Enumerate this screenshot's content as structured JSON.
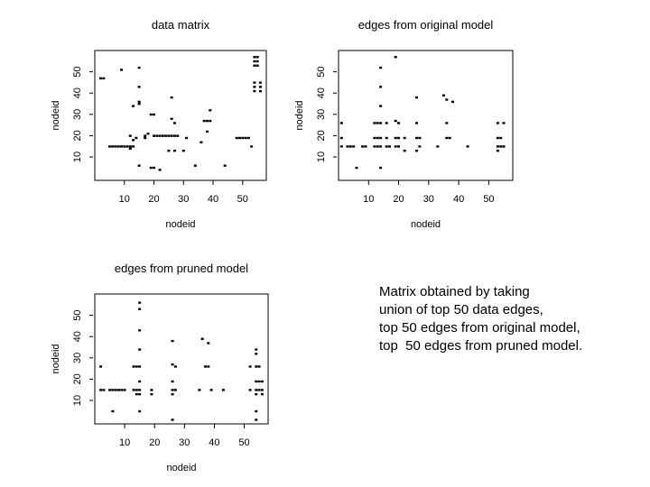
{
  "chart_data": [
    {
      "type": "scatter",
      "title": "data matrix",
      "xlabel": "nodeid",
      "ylabel": "nodeid",
      "xticks": [
        10,
        20,
        30,
        40,
        50
      ],
      "yticks": [
        10,
        20,
        30,
        40,
        50
      ],
      "xlim": [
        0,
        58
      ],
      "ylim": [
        -1,
        60
      ],
      "grid": false,
      "points": [
        [
          2,
          47
        ],
        [
          3,
          47
        ],
        [
          5,
          15
        ],
        [
          6,
          15
        ],
        [
          7,
          15
        ],
        [
          8,
          15
        ],
        [
          9,
          15
        ],
        [
          10,
          15
        ],
        [
          11,
          15
        ],
        [
          12,
          15
        ],
        [
          13,
          15
        ],
        [
          9,
          51
        ],
        [
          15,
          52
        ],
        [
          15,
          43
        ],
        [
          15,
          36
        ],
        [
          15,
          35
        ],
        [
          12,
          20
        ],
        [
          12,
          14
        ],
        [
          13,
          18
        ],
        [
          13,
          34
        ],
        [
          14,
          19
        ],
        [
          15,
          6
        ],
        [
          17,
          19
        ],
        [
          17,
          20
        ],
        [
          18,
          21
        ],
        [
          20,
          20
        ],
        [
          21,
          20
        ],
        [
          22,
          20
        ],
        [
          23,
          20
        ],
        [
          24,
          20
        ],
        [
          25,
          20
        ],
        [
          26,
          20
        ],
        [
          27,
          20
        ],
        [
          28,
          20
        ],
        [
          19,
          30
        ],
        [
          20,
          30
        ],
        [
          19,
          5
        ],
        [
          20,
          5
        ],
        [
          22,
          4
        ],
        [
          26,
          38
        ],
        [
          26,
          28
        ],
        [
          27,
          26
        ],
        [
          25,
          13
        ],
        [
          27,
          13
        ],
        [
          30,
          13
        ],
        [
          31,
          19
        ],
        [
          34,
          6
        ],
        [
          36,
          17
        ],
        [
          37,
          27
        ],
        [
          38,
          27
        ],
        [
          39,
          27
        ],
        [
          39,
          32
        ],
        [
          38,
          22
        ],
        [
          44,
          6
        ],
        [
          48,
          19
        ],
        [
          49,
          19
        ],
        [
          50,
          19
        ],
        [
          51,
          19
        ],
        [
          52,
          19
        ],
        [
          53,
          15
        ],
        [
          54,
          57
        ],
        [
          54,
          55
        ],
        [
          54,
          53
        ],
        [
          55,
          57
        ],
        [
          55,
          55
        ],
        [
          55,
          53
        ],
        [
          54,
          45
        ],
        [
          54,
          43
        ],
        [
          54,
          41
        ],
        [
          56,
          45
        ],
        [
          56,
          43
        ],
        [
          56,
          41
        ]
      ]
    },
    {
      "type": "scatter",
      "title": "edges from original model",
      "xlabel": "nodeid",
      "ylabel": "nodeid",
      "xticks": [
        10,
        20,
        30,
        40,
        50
      ],
      "yticks": [
        10,
        20,
        30,
        40,
        50
      ],
      "xlim": [
        0,
        58
      ],
      "ylim": [
        -1,
        60
      ],
      "grid": false,
      "points": [
        [
          1,
          26
        ],
        [
          1,
          19
        ],
        [
          1,
          15
        ],
        [
          3,
          15
        ],
        [
          4,
          15
        ],
        [
          5,
          15
        ],
        [
          6,
          5
        ],
        [
          8,
          15
        ],
        [
          9,
          15
        ],
        [
          12,
          26
        ],
        [
          12,
          19
        ],
        [
          12,
          15
        ],
        [
          13,
          26
        ],
        [
          13,
          19
        ],
        [
          13,
          15
        ],
        [
          14,
          52
        ],
        [
          14,
          43
        ],
        [
          14,
          34
        ],
        [
          14,
          26
        ],
        [
          14,
          19
        ],
        [
          14,
          15
        ],
        [
          14,
          5
        ],
        [
          16,
          26
        ],
        [
          16,
          19
        ],
        [
          16,
          15
        ],
        [
          17,
          15
        ],
        [
          19,
          57
        ],
        [
          19,
          27
        ],
        [
          19,
          19
        ],
        [
          19,
          15
        ],
        [
          20,
          26
        ],
        [
          20,
          19
        ],
        [
          20,
          15
        ],
        [
          22,
          19
        ],
        [
          22,
          13
        ],
        [
          26,
          38
        ],
        [
          26,
          26
        ],
        [
          26,
          19
        ],
        [
          26,
          13
        ],
        [
          27,
          19
        ],
        [
          27,
          15
        ],
        [
          33,
          15
        ],
        [
          35,
          39
        ],
        [
          36,
          26
        ],
        [
          36,
          19
        ],
        [
          36,
          37
        ],
        [
          37,
          19
        ],
        [
          38,
          36
        ],
        [
          43,
          15
        ],
        [
          53,
          26
        ],
        [
          53,
          19
        ],
        [
          53,
          15
        ],
        [
          53,
          13
        ],
        [
          54,
          19
        ],
        [
          54,
          15
        ],
        [
          55,
          26
        ],
        [
          55,
          15
        ]
      ]
    },
    {
      "type": "scatter",
      "title": "edges from pruned model",
      "xlabel": "nodeid",
      "ylabel": "nodeid",
      "xticks": [
        10,
        20,
        30,
        40,
        50
      ],
      "yticks": [
        10,
        20,
        30,
        40,
        50
      ],
      "xlim": [
        0,
        58
      ],
      "ylim": [
        -1,
        60
      ],
      "grid": false,
      "points": [
        [
          2,
          26
        ],
        [
          2,
          15
        ],
        [
          3,
          15
        ],
        [
          5,
          15
        ],
        [
          6,
          5
        ],
        [
          6,
          15
        ],
        [
          7,
          15
        ],
        [
          8,
          15
        ],
        [
          9,
          15
        ],
        [
          10,
          15
        ],
        [
          13,
          26
        ],
        [
          13,
          15
        ],
        [
          14,
          26
        ],
        [
          14,
          15
        ],
        [
          14,
          13
        ],
        [
          15,
          56
        ],
        [
          15,
          53
        ],
        [
          15,
          43
        ],
        [
          15,
          34
        ],
        [
          15,
          26
        ],
        [
          15,
          19
        ],
        [
          15,
          15
        ],
        [
          15,
          13
        ],
        [
          15,
          5
        ],
        [
          19,
          15
        ],
        [
          19,
          13
        ],
        [
          26,
          38
        ],
        [
          26,
          27
        ],
        [
          26,
          19
        ],
        [
          26,
          15
        ],
        [
          26,
          13
        ],
        [
          26,
          1
        ],
        [
          27,
          26
        ],
        [
          27,
          15
        ],
        [
          35,
          15
        ],
        [
          36,
          39
        ],
        [
          37,
          26
        ],
        [
          38,
          26
        ],
        [
          38,
          37
        ],
        [
          39,
          15
        ],
        [
          43,
          15
        ],
        [
          52,
          26
        ],
        [
          52,
          15
        ],
        [
          54,
          34
        ],
        [
          54,
          32
        ],
        [
          54,
          26
        ],
        [
          54,
          19
        ],
        [
          54,
          15
        ],
        [
          54,
          13
        ],
        [
          54,
          5
        ],
        [
          54,
          1
        ],
        [
          55,
          26
        ],
        [
          55,
          19
        ],
        [
          55,
          15
        ],
        [
          56,
          19
        ],
        [
          56,
          15
        ],
        [
          56,
          13
        ]
      ]
    }
  ],
  "caption": {
    "lines": [
      "Matrix obtained by taking",
      "union of top 50 data edges,",
      "top 50 edges from original model,",
      "top  50 edges from pruned model."
    ]
  }
}
